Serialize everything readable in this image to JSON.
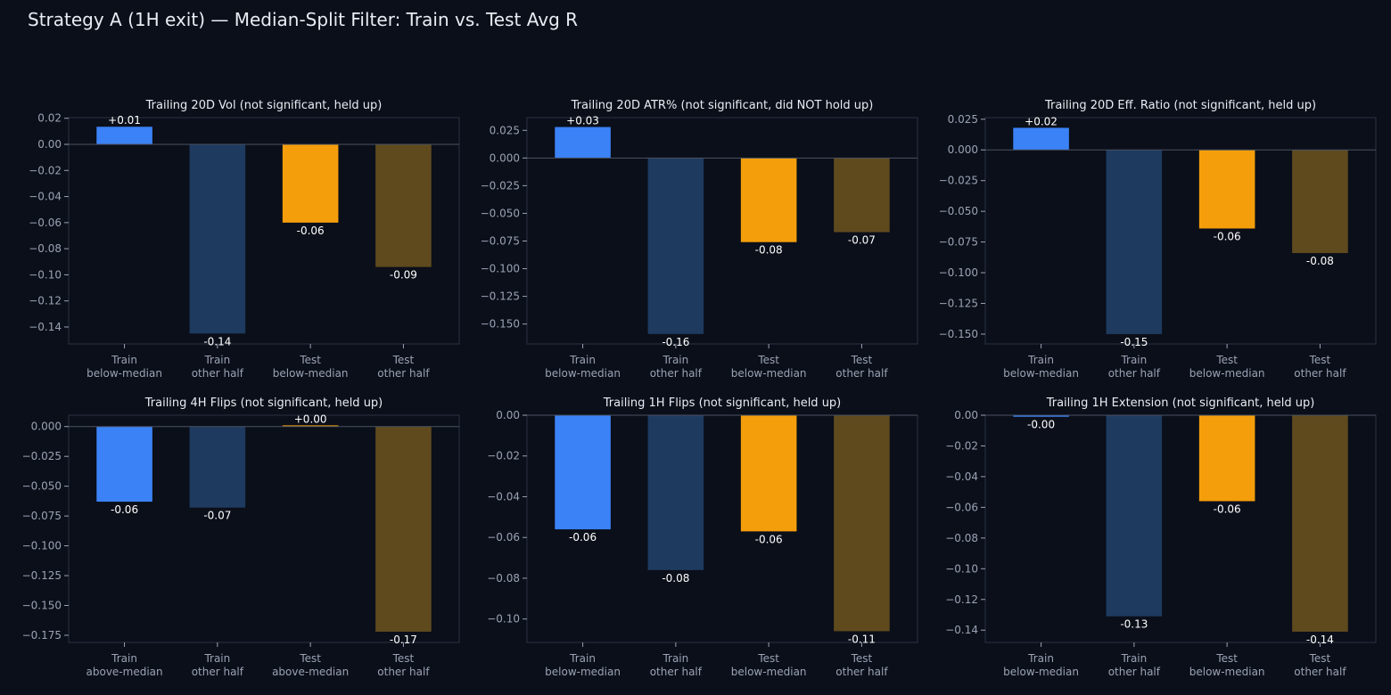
{
  "figure": {
    "title": "Strategy A (1H exit) — Median-Split Filter: Train vs. Test Avg R"
  },
  "colors": {
    "background": "#0b0f19",
    "axes_frame": "#2a3142",
    "zero_line": "#4a5262",
    "tick_label": "#9aa3b5",
    "panel_title": "#e8ecf3",
    "value_label": "#ffffff",
    "train_filter": "#3b82f6",
    "train_other": "#1e3a5f",
    "test_filter": "#f59e0b",
    "test_other": "#5f4a1e"
  },
  "chart_data": [
    {
      "type": "bar",
      "title": "Trailing 20D Vol (not significant, held up)",
      "categories": [
        "Train\nbelow-median",
        "Train\nother half",
        "Test\nbelow-median",
        "Test\nother half"
      ],
      "values": [
        0.0135,
        -0.145,
        -0.06,
        -0.094
      ],
      "value_labels": [
        "+0.01",
        "-0.14",
        "-0.06",
        "-0.09"
      ],
      "ylim": [
        -0.153,
        0.0205
      ],
      "yticks": [
        0.02,
        0.0,
        -0.02,
        -0.04,
        -0.06,
        -0.08,
        -0.1,
        -0.12,
        -0.14
      ],
      "ytick_labels": [
        "0.02",
        "0.00",
        "−0.02",
        "−0.04",
        "−0.06",
        "−0.08",
        "−0.10",
        "−0.12",
        "−0.14"
      ],
      "grid": false,
      "xlabel": "",
      "ylabel": ""
    },
    {
      "type": "bar",
      "title": "Trailing 20D ATR% (not significant, did NOT hold up)",
      "categories": [
        "Train\nbelow-median",
        "Train\nother half",
        "Test\nbelow-median",
        "Test\nother half"
      ],
      "values": [
        0.028,
        -0.159,
        -0.076,
        -0.067
      ],
      "value_labels": [
        "+0.03",
        "-0.16",
        "-0.08",
        "-0.07"
      ],
      "ylim": [
        -0.168,
        0.0365
      ],
      "yticks": [
        0.025,
        0.0,
        -0.025,
        -0.05,
        -0.075,
        -0.1,
        -0.125,
        -0.15
      ],
      "ytick_labels": [
        "0.025",
        "0.000",
        "−0.025",
        "−0.050",
        "−0.075",
        "−0.100",
        "−0.125",
        "−0.150"
      ],
      "grid": false,
      "xlabel": "",
      "ylabel": ""
    },
    {
      "type": "bar",
      "title": "Trailing 20D Eff. Ratio (not significant, held up)",
      "categories": [
        "Train\nbelow-median",
        "Train\nother half",
        "Test\nbelow-median",
        "Test\nother half"
      ],
      "values": [
        0.018,
        -0.15,
        -0.064,
        -0.084
      ],
      "value_labels": [
        "+0.02",
        "-0.15",
        "-0.06",
        "-0.08"
      ],
      "ylim": [
        -0.158,
        0.0263
      ],
      "yticks": [
        0.025,
        0.0,
        -0.025,
        -0.05,
        -0.075,
        -0.1,
        -0.125,
        -0.15
      ],
      "ytick_labels": [
        "0.025",
        "0.000",
        "−0.025",
        "−0.050",
        "−0.075",
        "−0.100",
        "−0.125",
        "−0.150"
      ],
      "grid": false,
      "xlabel": "",
      "ylabel": ""
    },
    {
      "type": "bar",
      "title": "Trailing 4H Flips (not significant, held up)",
      "categories": [
        "Train\nabove-median",
        "Train\nother half",
        "Test\nabove-median",
        "Test\nother half"
      ],
      "values": [
        -0.063,
        -0.068,
        0.001,
        -0.172
      ],
      "value_labels": [
        "-0.06",
        "-0.07",
        "+0.00",
        "-0.17"
      ],
      "ylim": [
        -0.181,
        0.0095
      ],
      "yticks": [
        0.0,
        -0.025,
        -0.05,
        -0.075,
        -0.1,
        -0.125,
        -0.15,
        -0.175
      ],
      "ytick_labels": [
        "0.000",
        "−0.025",
        "−0.050",
        "−0.075",
        "−0.100",
        "−0.125",
        "−0.150",
        "−0.175"
      ],
      "grid": false,
      "xlabel": "",
      "ylabel": ""
    },
    {
      "type": "bar",
      "title": "Trailing 1H Flips (not significant, held up)",
      "categories": [
        "Train\nbelow-median",
        "Train\nother half",
        "Test\nbelow-median",
        "Test\nother half"
      ],
      "values": [
        -0.056,
        -0.076,
        -0.057,
        -0.106
      ],
      "value_labels": [
        "-0.06",
        "-0.08",
        "-0.06",
        "-0.11"
      ],
      "ylim": [
        -0.1115,
        0.0
      ],
      "yticks": [
        0.0,
        -0.02,
        -0.04,
        -0.06,
        -0.08,
        -0.1
      ],
      "ytick_labels": [
        "0.00",
        "−0.02",
        "−0.04",
        "−0.06",
        "−0.08",
        "−0.10"
      ],
      "grid": false,
      "xlabel": "",
      "ylabel": ""
    },
    {
      "type": "bar",
      "title": "Trailing 1H Extension (not significant, held up)",
      "categories": [
        "Train\nbelow-median",
        "Train\nother half",
        "Test\nbelow-median",
        "Test\nother half"
      ],
      "values": [
        -0.001,
        -0.131,
        -0.056,
        -0.141
      ],
      "value_labels": [
        "-0.00",
        "-0.13",
        "-0.06",
        "-0.14"
      ],
      "ylim": [
        -0.148,
        0.0
      ],
      "yticks": [
        0.0,
        -0.02,
        -0.04,
        -0.06,
        -0.08,
        -0.1,
        -0.12,
        -0.14
      ],
      "ytick_labels": [
        "0.00",
        "−0.02",
        "−0.04",
        "−0.06",
        "−0.08",
        "−0.10",
        "−0.12",
        "−0.14"
      ],
      "grid": false,
      "xlabel": "",
      "ylabel": ""
    }
  ]
}
